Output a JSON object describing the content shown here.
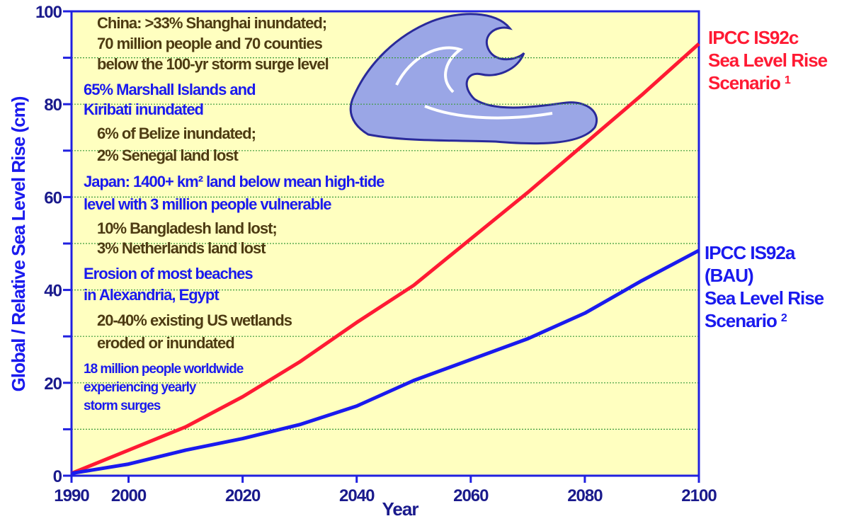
{
  "chart_data": {
    "type": "line",
    "x_label": "Year",
    "y_label": "Global / Relative Sea Level Rise (cm)",
    "x": [
      1990,
      2000,
      2010,
      2020,
      2030,
      2040,
      2050,
      2060,
      2070,
      2080,
      2090,
      2100
    ],
    "series": [
      {
        "name": "IPCC IS92c Sea Level Rise Scenario",
        "footnote": "1",
        "color": "#ff1a33",
        "values": [
          0.5,
          5.5,
          10.5,
          17,
          24.5,
          33,
          41,
          51,
          61,
          71.5,
          82,
          93
        ]
      },
      {
        "name": "IPCC IS92a (BAU) Sea Level Rise Scenario",
        "footnote": "2",
        "color": "#1a1aee",
        "values": [
          0.5,
          2.5,
          5.5,
          8,
          11,
          15,
          20.5,
          25,
          29.5,
          35,
          42,
          48.5
        ]
      }
    ],
    "xlim": [
      1990,
      2100
    ],
    "xticks": [
      1990,
      2000,
      2020,
      2040,
      2060,
      2080,
      2100
    ],
    "ylim": [
      0,
      100
    ],
    "yticks": [
      0,
      20,
      40,
      60,
      80,
      100
    ],
    "minor_yticks": [
      10,
      30,
      50,
      70,
      90
    ],
    "grid": true,
    "annotations": [
      {
        "color": "#4d3b12",
        "lines": [
          "China: >33% Shanghai inundated;",
          "70 million people and 70 counties",
          "below the 100-yr storm surge level"
        ]
      },
      {
        "color": "#1a1aee",
        "lines": [
          "65% Marshall Islands and",
          "Kiribati inundated"
        ]
      },
      {
        "color": "#4d3b12",
        "lines": [
          "6% of Belize inundated;",
          "2% Senegal land lost"
        ]
      },
      {
        "color": "#1a1aee",
        "lines": [
          "Japan: 1400+ km² land below mean high-tide",
          "level with 3 million people vulnerable"
        ]
      },
      {
        "color": "#4d3b12",
        "lines": [
          "10% Bangladesh land lost;",
          "3% Netherlands land lost"
        ]
      },
      {
        "color": "#1a1aee",
        "lines": [
          "Erosion of most beaches",
          "in Alexandria, Egypt"
        ]
      },
      {
        "color": "#4d3b12",
        "lines": [
          "20-40% existing US wetlands",
          "eroded or inundated"
        ]
      },
      {
        "color": "#1a1aee",
        "lines": [
          "18 million people worldwide",
          "experiencing yearly",
          "storm surges"
        ]
      }
    ]
  }
}
